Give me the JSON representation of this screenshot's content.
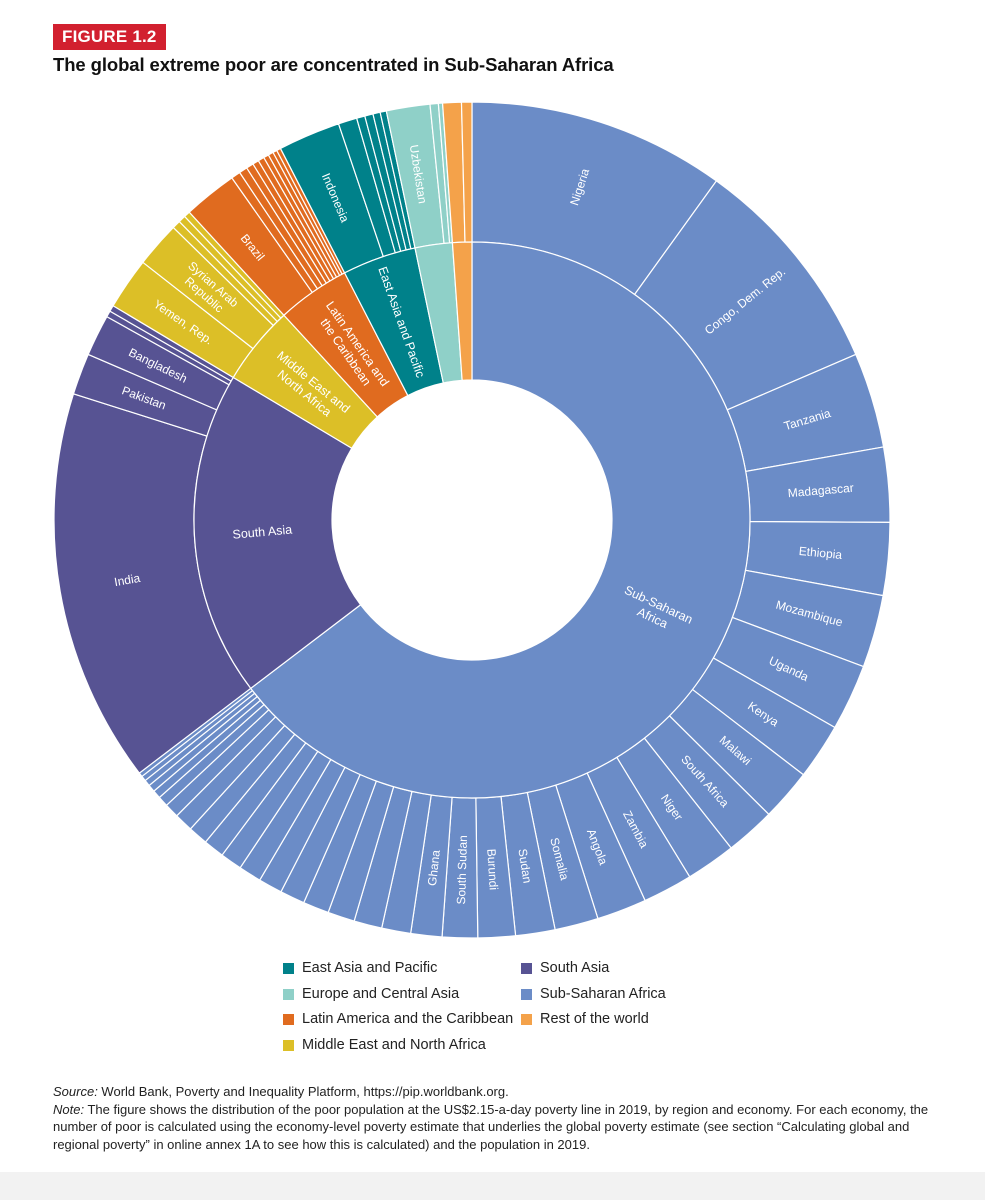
{
  "figure": {
    "badge": "FIGURE 1.2",
    "title": "The global extreme poor are concentrated in Sub-Saharan Africa"
  },
  "colors": {
    "East Asia and Pacific": "#00818a",
    "Europe and Central Asia": "#8fd0c8",
    "Latin America and the Caribbean": "#e06b1f",
    "Middle East and North Africa": "#dcbf27",
    "South Asia": "#575393",
    "Sub-Saharan Africa": "#6b8cc7",
    "Rest of the world": "#f4a24a"
  },
  "chart_data": {
    "type": "sunburst",
    "title": "The global extreme poor are concentrated in Sub-Saharan Africa",
    "unit": "share of global poor (%)",
    "regions": [
      {
        "name": "Sub-Saharan Africa",
        "label": "Sub-Saharan Africa",
        "countries": [
          {
            "name": "Nigeria",
            "value": 12.4
          },
          {
            "name": "Congo, Dem. Rep.",
            "value": 10.7
          },
          {
            "name": "Tanzania",
            "value": 4.6
          },
          {
            "name": "Madagascar",
            "value": 3.6
          },
          {
            "name": "Ethiopia",
            "value": 3.5
          },
          {
            "name": "Mozambique",
            "value": 3.5
          },
          {
            "name": "Uganda",
            "value": 3.2
          },
          {
            "name": "Kenya",
            "value": 2.7
          },
          {
            "name": "Malawi",
            "value": 2.5
          },
          {
            "name": "South Africa",
            "value": 2.4
          },
          {
            "name": "Niger",
            "value": 2.4
          },
          {
            "name": "Zambia",
            "value": 2.4
          },
          {
            "name": "Angola",
            "value": 2.4
          },
          {
            "name": "Somalia",
            "value": 2.1
          },
          {
            "name": "Sudan",
            "value": 1.9
          },
          {
            "name": "Burundi",
            "value": 1.8
          },
          {
            "name": "South Sudan",
            "value": 1.7
          },
          {
            "name": "Ghana",
            "value": 1.5
          },
          {
            "name": "",
            "value": 1.4
          },
          {
            "name": "",
            "value": 1.35
          },
          {
            "name": "",
            "value": 1.3
          },
          {
            "name": "",
            "value": 1.25
          },
          {
            "name": "",
            "value": 1.2
          },
          {
            "name": "",
            "value": 1.15
          },
          {
            "name": "",
            "value": 1.1
          },
          {
            "name": "",
            "value": 1.05
          },
          {
            "name": "",
            "value": 1.0
          },
          {
            "name": "",
            "value": 0.95
          },
          {
            "name": "",
            "value": 0.9
          },
          {
            "name": "",
            "value": 0.7
          },
          {
            "name": "",
            "value": 0.5
          },
          {
            "name": "",
            "value": 0.4
          },
          {
            "name": "",
            "value": 0.35
          },
          {
            "name": "",
            "value": 0.3
          },
          {
            "name": "",
            "value": 0.25
          },
          {
            "name": "",
            "value": 0.2
          }
        ]
      },
      {
        "name": "South Asia",
        "label": "South Asia",
        "countries": [
          {
            "name": "India",
            "value": 19.0
          },
          {
            "name": "Pakistan",
            "value": 2.0
          },
          {
            "name": "Bangladesh",
            "value": 2.0
          },
          {
            "name": "",
            "value": 0.3
          },
          {
            "name": "",
            "value": 0.3
          }
        ]
      },
      {
        "name": "Middle East and North Africa",
        "label": "Middle East and North Africa",
        "countries": [
          {
            "name": "Yemen, Rep.",
            "value": 2.5
          },
          {
            "name": "Syrian Arab Republic",
            "value": 2.2
          },
          {
            "name": "",
            "value": 0.4
          },
          {
            "name": "",
            "value": 0.35
          },
          {
            "name": "",
            "value": 0.3
          }
        ]
      },
      {
        "name": "Latin America and the Caribbean",
        "label": "Latin America and the Caribbean",
        "countries": [
          {
            "name": "Brazil",
            "value": 2.6
          },
          {
            "name": "",
            "value": 0.45
          },
          {
            "name": "",
            "value": 0.4
          },
          {
            "name": "",
            "value": 0.35
          },
          {
            "name": "",
            "value": 0.3
          },
          {
            "name": "",
            "value": 0.3
          },
          {
            "name": "",
            "value": 0.25
          },
          {
            "name": "",
            "value": 0.25
          },
          {
            "name": "",
            "value": 0.2
          },
          {
            "name": "",
            "value": 0.2
          }
        ]
      },
      {
        "name": "East Asia and Pacific",
        "label": "East Asia and Pacific",
        "countries": [
          {
            "name": "Indonesia",
            "value": 3.0
          },
          {
            "name": "",
            "value": 0.9
          },
          {
            "name": "",
            "value": 0.4
          },
          {
            "name": "",
            "value": 0.4
          },
          {
            "name": "",
            "value": 0.35
          },
          {
            "name": "",
            "value": 0.3
          }
        ]
      },
      {
        "name": "Europe and Central Asia",
        "label": "",
        "countries": [
          {
            "name": "Uzbekistan",
            "value": 2.1
          },
          {
            "name": "",
            "value": 0.4
          },
          {
            "name": "",
            "value": 0.2
          }
        ]
      },
      {
        "name": "Rest of the world",
        "label": "",
        "countries": [
          {
            "name": "",
            "value": 0.9
          },
          {
            "name": "",
            "value": 0.5
          }
        ]
      }
    ],
    "legend": [
      "East Asia and Pacific",
      "South Asia",
      "Europe and Central Asia",
      "Sub-Saharan Africa",
      "Latin America and the Caribbean",
      "Rest of the world",
      "Middle East and North Africa"
    ]
  },
  "notes": {
    "source_label": "Source:",
    "source_text": " World Bank, Poverty and Inequality Platform, https://pip.worldbank.org.",
    "note_label": "Note:",
    "note_text": " The figure shows the distribution of the poor population at the US$2.15-a-day poverty line in 2019, by region and economy. For each economy, the number of poor is calculated using the economy-level poverty estimate that underlies the global poverty estimate (see section “Calculating global and regional poverty” in online annex 1A to see how this is calculated) and the population in 2019."
  }
}
